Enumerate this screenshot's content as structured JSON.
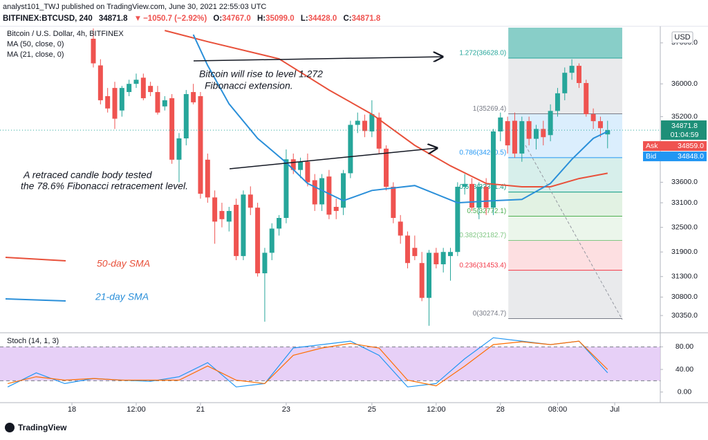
{
  "header": {
    "publisher": "analyst101_TWJ published on TradingView.com, June 30, 2021 22:55:03 UTC",
    "symbol": "BITFINEX:BTCUSD, 240",
    "last": "34871.8",
    "change": "−1050.7 (−2.92%)",
    "open_label": "O:",
    "open": "34767.0",
    "high_label": "H:",
    "high": "35099.0",
    "low_label": "L:",
    "low": "34428.0",
    "close_label": "C:",
    "close": "34871.8"
  },
  "footer": {
    "brand": "TradingView"
  },
  "chart_data": {
    "type": "candlestick",
    "title": "Bitcoin / U.S. Dollar, 4h, BITFINEX",
    "currency": "USD",
    "colors": {
      "up": "#26a69a",
      "down": "#ef5350"
    },
    "open": [
      37100,
      36450,
      35700,
      35900,
      35350,
      35800,
      36000,
      36150,
      35950,
      35800,
      35450,
      35650,
      34150,
      34670,
      35800,
      35700,
      34150,
      33230,
      32900,
      32640,
      33050,
      31800,
      33300,
      32980,
      31380,
      31880,
      32470,
      32730,
      34160,
      33900,
      34100,
      33650,
      33060,
      33740,
      33000,
      32980,
      33820,
      35000,
      35100,
      34840,
      35180,
      34420,
      33490,
      32640,
      32300,
      32000,
      31630,
      30780,
      31880,
      31600,
      31800,
      31900,
      33490,
      33560,
      32980,
      33490,
      32980,
      34840,
      35090,
      35100,
      34300,
      35090,
      34660,
      34900,
      34750,
      35340,
      35770,
      36270,
      36440,
      36020,
      35260,
      35090,
      34767
    ],
    "high": [
      37350,
      36600,
      35900,
      36050,
      35950,
      36100,
      36250,
      36250,
      36050,
      35950,
      35700,
      35750,
      34800,
      35850,
      36000,
      35800,
      34300,
      33400,
      33100,
      33000,
      33200,
      33400,
      33500,
      33100,
      32000,
      32600,
      32800,
      34400,
      34300,
      34200,
      34300,
      33800,
      33800,
      33900,
      33200,
      33900,
      35100,
      35300,
      35250,
      35600,
      35300,
      34500,
      33600,
      32800,
      32400,
      32300,
      31900,
      31950,
      32000,
      32000,
      32000,
      33600,
      33800,
      33700,
      33600,
      33700,
      34900,
      35300,
      35200,
      35300,
      35200,
      35200,
      35000,
      35100,
      35500,
      35900,
      36400,
      36600,
      36500,
      36100,
      35400,
      35200,
      35099
    ],
    "low": [
      36400,
      35500,
      35300,
      34900,
      35200,
      35700,
      35900,
      35600,
      35700,
      35250,
      35350,
      34050,
      33600,
      34500,
      35500,
      33200,
      33100,
      32100,
      32500,
      32400,
      31700,
      31700,
      32800,
      31300,
      30200,
      31700,
      32300,
      32600,
      33800,
      33700,
      33500,
      32900,
      32900,
      32700,
      32700,
      32800,
      33700,
      34800,
      34700,
      34700,
      34300,
      33400,
      32600,
      32100,
      31500,
      31700,
      30700,
      30100,
      31500,
      31400,
      31200,
      31800,
      33300,
      32900,
      32700,
      32800,
      32800,
      34600,
      34300,
      34200,
      34100,
      34500,
      34400,
      34500,
      34600,
      35200,
      35600,
      36100,
      35900,
      35200,
      34900,
      34700,
      34428
    ],
    "close": [
      36500,
      35600,
      35400,
      35150,
      35900,
      36000,
      36100,
      35650,
      35800,
      35300,
      35600,
      34150,
      34670,
      35750,
      35550,
      33320,
      33230,
      32640,
      32700,
      32900,
      31800,
      33300,
      32980,
      31380,
      31880,
      32470,
      32730,
      34160,
      33900,
      34100,
      33600,
      33060,
      33700,
      32810,
      32900,
      33820,
      35000,
      35100,
      34850,
      35260,
      34420,
      33490,
      32730,
      32300,
      31630,
      31800,
      30780,
      31880,
      31600,
      31900,
      31900,
      33490,
      33560,
      32980,
      33490,
      32980,
      34840,
      35180,
      34500,
      34300,
      35090,
      34660,
      34900,
      34700,
      35340,
      35770,
      36270,
      36440,
      36020,
      35260,
      35090,
      34920,
      34871.8
    ],
    "xlim": [
      -13.07,
      79.38
    ],
    "xticks": [
      {
        "value": -3,
        "label": "18"
      },
      {
        "value": 6,
        "label": "12:00"
      },
      {
        "value": 15,
        "label": "21"
      },
      {
        "value": 27,
        "label": "23"
      },
      {
        "value": 39,
        "label": "25"
      },
      {
        "value": 48,
        "label": "12:00"
      },
      {
        "value": 57,
        "label": "28"
      },
      {
        "value": 65,
        "label": "08:00"
      },
      {
        "value": 73,
        "label": "Jul"
      }
    ],
    "ylim": [
      29980,
      37370
    ],
    "yticks": [
      {
        "value": 30350,
        "label": "30350.0"
      },
      {
        "value": 30800,
        "label": "30800.0"
      },
      {
        "value": 31300,
        "label": "31300.0"
      },
      {
        "value": 31900,
        "label": "31900.0"
      },
      {
        "value": 32500,
        "label": "32500.0"
      },
      {
        "value": 33100,
        "label": "33100.0"
      },
      {
        "value": 33600,
        "label": "33600.0"
      },
      {
        "value": 35200,
        "label": "35200.0"
      },
      {
        "value": 36000,
        "label": "36000.0"
      },
      {
        "value": 37000,
        "label": "37000.0"
      }
    ],
    "series": [
      {
        "name": "MA (50, close, 0)",
        "color": "#e8503a",
        "x": [
          10,
          16,
          26,
          33,
          39,
          45,
          50,
          55,
          60,
          64,
          68,
          72
        ],
        "values": [
          37300,
          37030,
          36610,
          35850,
          35260,
          34500,
          34000,
          33570,
          33490,
          33490,
          33690,
          33820
        ]
      },
      {
        "name": "MA (21, close, 0)",
        "color": "#2a8fd9",
        "x": [
          14,
          16,
          19,
          23,
          27,
          30,
          35,
          39,
          45,
          51,
          56,
          60,
          64,
          67,
          70,
          72
        ],
        "values": [
          37200,
          36450,
          35510,
          34670,
          34080,
          33570,
          33150,
          33400,
          33520,
          33100,
          33150,
          33180,
          33570,
          34160,
          34670,
          34840
        ]
      }
    ],
    "last_price": 34871.8,
    "countdown": "01:04:59",
    "ask_label": "Ask",
    "ask": "34859.0",
    "bid_label": "Bid",
    "bid": "34848.0",
    "fibonacci": {
      "x_range": [
        58.1,
        74.05
      ],
      "levels": [
        {
          "value": 36628.0,
          "label": "1.272(36628.0)",
          "color": "#26a69a"
        },
        {
          "value": 35269.4,
          "label": "1(35269.4)",
          "color": "#787b86"
        },
        {
          "value": 34200.5,
          "label": "0.786(34200.5)",
          "color": "#2196f3"
        },
        {
          "value": 33361.4,
          "label": "0.618(33361.4)",
          "color": "#089981"
        },
        {
          "value": 32772.1,
          "label": "0.5(32772.1)",
          "color": "#4caf50"
        },
        {
          "value": 32182.7,
          "label": "0.382(32182.7)",
          "color": "#81c784"
        },
        {
          "value": 31453.4,
          "label": "0.236(31453.4)",
          "color": "#f23645"
        },
        {
          "value": 30274.7,
          "label": "0(30274.7)",
          "color": "#787b86"
        }
      ]
    },
    "annotations": [
      "Bitcoin will rise to level 1.272",
      "Fibonacci extension.",
      "A  retraced candle body tested",
      "the 78.6% Fibonacci retracement level.",
      "50-day SMA",
      "21-day SMA"
    ],
    "stoch": {
      "type": "line",
      "title": "Stoch (14, 1, 3)",
      "ylim": [
        -18.75,
        98.75
      ],
      "yticks": [
        {
          "value": 0,
          "label": "0.00"
        },
        {
          "value": 40,
          "label": "40.00"
        },
        {
          "value": 80,
          "label": "80.00"
        }
      ],
      "band": [
        20,
        80
      ],
      "band_color": "#e1c4f5",
      "x": [
        -12,
        -8,
        -4,
        0,
        4,
        8,
        12,
        16,
        20,
        24,
        28,
        32,
        36,
        40,
        44,
        48,
        52,
        56,
        60,
        64,
        68,
        72
      ],
      "series": [
        {
          "color": "#2196f3",
          "values": [
            9,
            34,
            15,
            24,
            21,
            19,
            27,
            52,
            9,
            15,
            78,
            84,
            90,
            65,
            9,
            15,
            59,
            96,
            90,
            84,
            90,
            34
          ]
        },
        {
          "color": "#ff6d00",
          "values": [
            15,
            27,
            21,
            24,
            21,
            21,
            21,
            46,
            21,
            15,
            65,
            78,
            86,
            78,
            21,
            11,
            46,
            84,
            89,
            84,
            90,
            40
          ]
        }
      ]
    }
  }
}
